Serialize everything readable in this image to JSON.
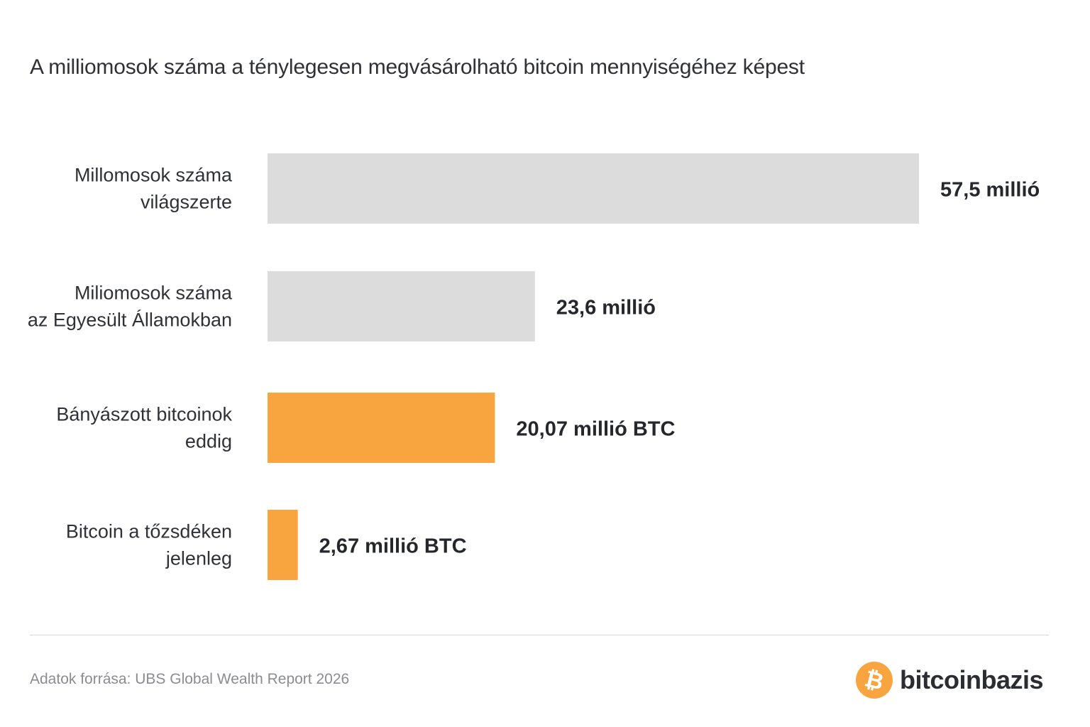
{
  "chart_data": {
    "type": "bar",
    "orientation": "horizontal",
    "title": "A milliomosok száma a ténylegesen megvásárolható bitcoin mennyiségéhez képest",
    "categories": [
      [
        "Millomosok száma",
        "világszerte"
      ],
      [
        "Miliomosok száma",
        "az Egyesült Államokban"
      ],
      [
        "Bányászott bitcoinok",
        "eddig"
      ],
      [
        "Bitcoin a tőzsdéken",
        "jelenleg"
      ]
    ],
    "values": [
      57.5,
      23.6,
      20.07,
      2.67
    ],
    "value_labels": [
      "57,5 millió",
      "23,6 millió",
      "20,07 millió BTC",
      "2,67 millió BTC"
    ],
    "colors": [
      "#dcdcdc",
      "#dcdcdc",
      "#f9a53f",
      "#f9a53f"
    ],
    "xlim": [
      0,
      57.5
    ],
    "grid": false,
    "legend": "none"
  },
  "footer": {
    "source": "Adatok forrása: UBS Global Wealth Report 2026",
    "brand_name": "bitcoinbazis",
    "brand_icon": "bitcoin-icon",
    "brand_color": "#f9a53f",
    "brand_symbol": "₿"
  }
}
